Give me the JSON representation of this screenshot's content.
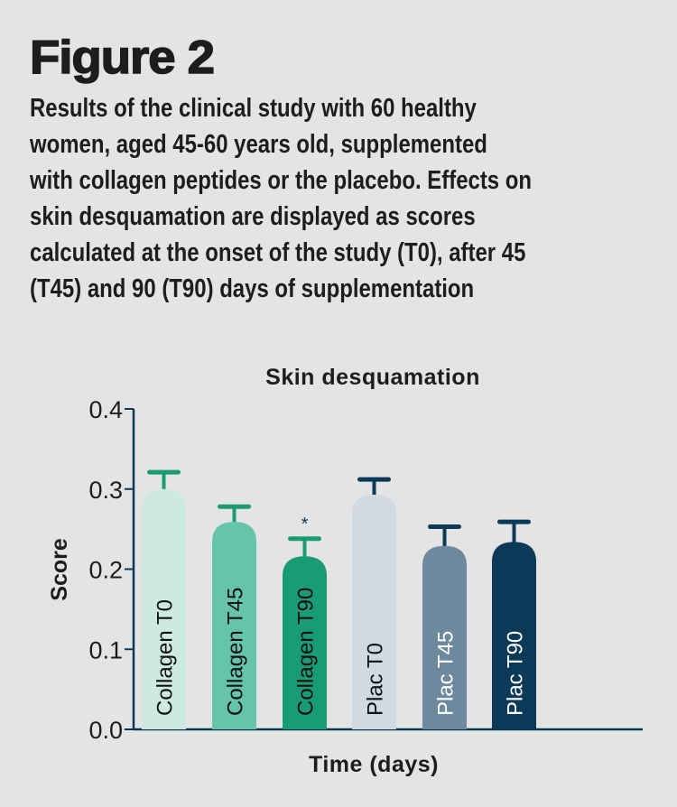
{
  "figure": {
    "title": "Figure 2",
    "caption_lines": [
      "Results of the clinical study with 60 healthy",
      "women, aged 45-60 years old, supplemented",
      "with collagen peptides or the placebo. Effects on",
      "skin desquamation are displayed as scores",
      "calculated at the onset of the study (T0), after 45",
      "(T45) and 90 (T90) days of supplementation"
    ]
  },
  "chart_data": {
    "type": "bar",
    "title": "Skin desquamation",
    "xlabel": "Time (days)",
    "ylabel": "Score",
    "ylim": [
      0,
      0.4
    ],
    "yticks": [
      "0.0",
      "0.1",
      "0.2",
      "0.3",
      "0.4"
    ],
    "grid": false,
    "categories": [
      "Collagen T0",
      "Collagen T45",
      "Collagen T90",
      "Plac T0",
      "Plac T45",
      "Plac T90"
    ],
    "values": [
      0.3,
      0.259,
      0.216,
      0.293,
      0.229,
      0.234
    ],
    "error_upper": [
      0.321,
      0.278,
      0.238,
      0.312,
      0.253,
      0.259
    ],
    "annotations": [
      "",
      "",
      "*",
      "",
      "",
      ""
    ],
    "colors": [
      "#cdeae2",
      "#66c4aa",
      "#199b73",
      "#cfdae2",
      "#6d899d",
      "#0b3a59"
    ],
    "error_colors": [
      "#1a9b74",
      "#1a9b74",
      "#1a9b74",
      "#0b3a59",
      "#0b3a59",
      "#0b3a59"
    ],
    "label_colors": [
      "#111111",
      "#111111",
      "#111111",
      "#111111",
      "#ffffff",
      "#ffffff"
    ],
    "axis_color": "#0b3a59"
  }
}
